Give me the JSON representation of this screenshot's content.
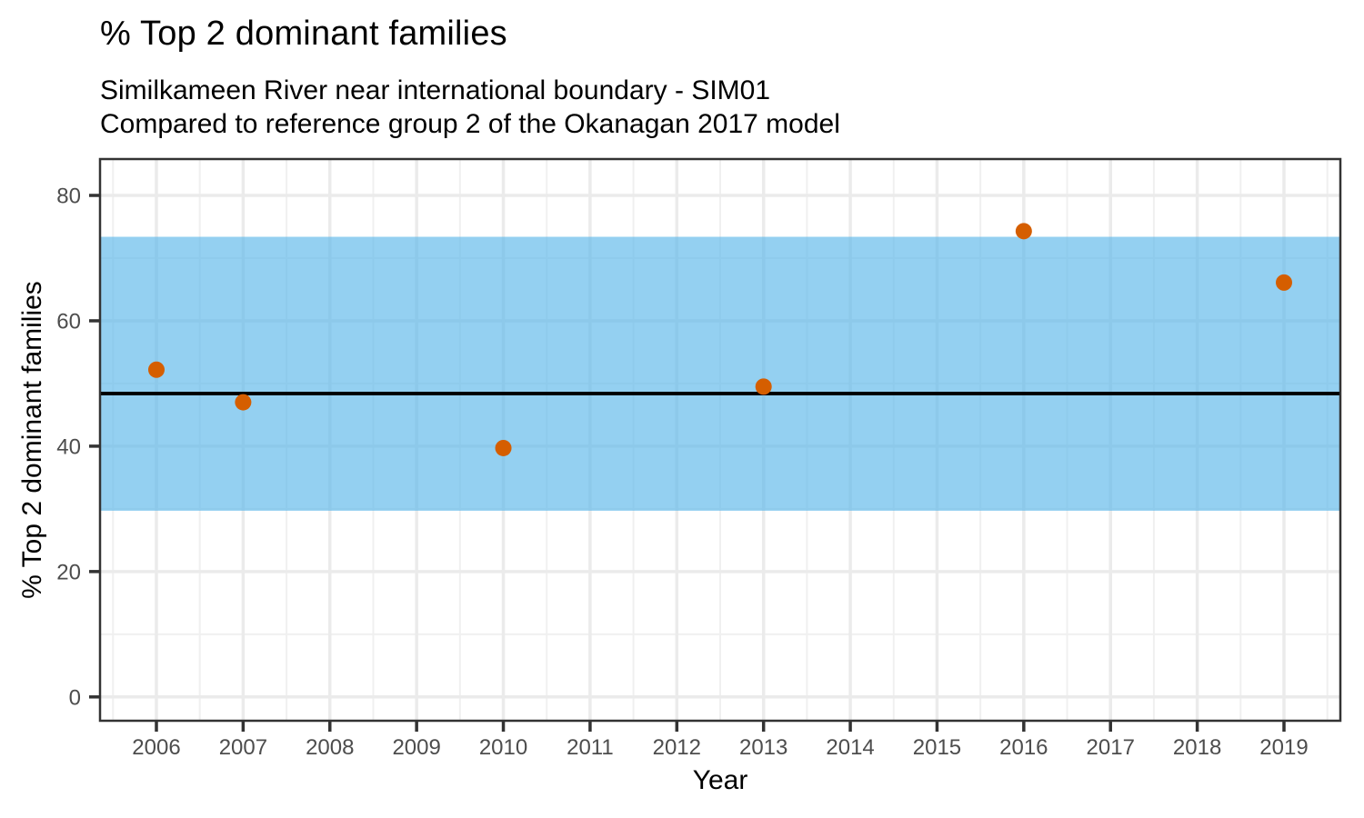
{
  "chart_data": {
    "type": "scatter",
    "title": "% Top 2 dominant families",
    "subtitle_lines": [
      "Similkameen River near international boundary - SIM01",
      "Compared to reference group 2 of the Okanagan 2017 model"
    ],
    "xlabel": "Year",
    "ylabel": "% Top 2 dominant families",
    "x_ticks": [
      2006,
      2007,
      2008,
      2009,
      2010,
      2011,
      2012,
      2013,
      2014,
      2015,
      2016,
      2017,
      2018,
      2019
    ],
    "y_ticks": [
      0,
      20,
      40,
      60,
      80
    ],
    "y_minor_ticks": [
      10,
      30,
      50,
      70
    ],
    "xlim": [
      2005.35,
      2019.65
    ],
    "ylim": [
      -3.8,
      85.8
    ],
    "grid": "major-and-minor",
    "legend_position": "none",
    "reference_band": {
      "lower": 29.7,
      "upper": 73.4,
      "fill": "#56B4E9",
      "opacity": 0.63
    },
    "reference_line": {
      "value": 48.4,
      "color": "#000000"
    },
    "series": [
      {
        "name": "% Top 2 dominant families",
        "color": "#D55E00",
        "points": [
          {
            "year": 2006,
            "value": 52.2
          },
          {
            "year": 2007,
            "value": 47.0
          },
          {
            "year": 2010,
            "value": 39.7
          },
          {
            "year": 2013,
            "value": 49.5
          },
          {
            "year": 2016,
            "value": 74.3
          },
          {
            "year": 2019,
            "value": 66.1
          }
        ]
      }
    ],
    "style_colors": {
      "grid_major": "#EBEBEB",
      "grid_minor": "#F0F0F0",
      "axis_text": "#4D4D4D",
      "panel_border": "#333333",
      "tick_mark": "#333333"
    }
  }
}
